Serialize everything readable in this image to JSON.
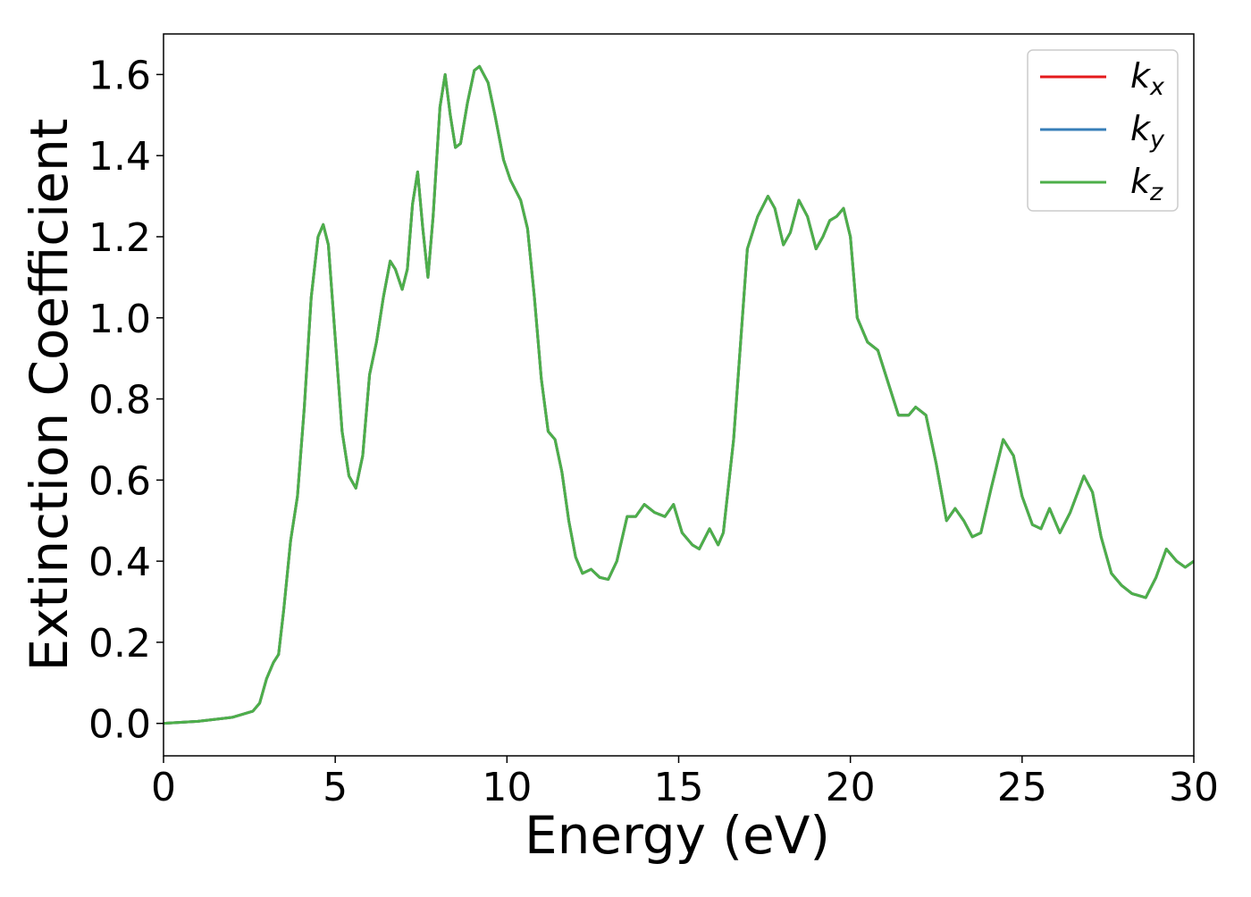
{
  "chart_data": {
    "type": "line",
    "xlabel": "Energy (eV)",
    "ylabel": "Extinction Coefficient",
    "x": [
      0,
      1,
      2,
      2.6,
      2.8,
      3.0,
      3.2,
      3.35,
      3.5,
      3.7,
      3.9,
      4.1,
      4.3,
      4.5,
      4.65,
      4.8,
      5.0,
      5.2,
      5.4,
      5.6,
      5.8,
      6.0,
      6.2,
      6.4,
      6.6,
      6.75,
      6.95,
      7.1,
      7.25,
      7.4,
      7.55,
      7.7,
      7.85,
      8.05,
      8.2,
      8.35,
      8.5,
      8.65,
      8.85,
      9.05,
      9.2,
      9.45,
      9.65,
      9.9,
      10.1,
      10.4,
      10.6,
      10.8,
      11.0,
      11.2,
      11.4,
      11.6,
      11.8,
      12.0,
      12.2,
      12.45,
      12.7,
      12.95,
      13.2,
      13.5,
      13.75,
      14.0,
      14.3,
      14.6,
      14.85,
      15.1,
      15.4,
      15.6,
      15.9,
      16.15,
      16.3,
      16.6,
      17.0,
      17.3,
      17.6,
      17.8,
      18.05,
      18.25,
      18.5,
      18.75,
      19.0,
      19.2,
      19.4,
      19.6,
      19.8,
      20.0,
      20.2,
      20.5,
      20.8,
      21.1,
      21.4,
      21.7,
      21.9,
      22.2,
      22.5,
      22.8,
      23.05,
      23.3,
      23.55,
      23.8,
      24.1,
      24.45,
      24.75,
      25.0,
      25.3,
      25.55,
      25.8,
      26.1,
      26.4,
      26.8,
      27.05,
      27.3,
      27.6,
      27.9,
      28.2,
      28.6,
      28.9,
      29.2,
      29.5,
      29.75,
      30
    ],
    "series": [
      {
        "name": "kx",
        "color": "#e41a1c",
        "values": [
          0,
          0.005,
          0.015,
          0.03,
          0.05,
          0.11,
          0.15,
          0.17,
          0.28,
          0.45,
          0.56,
          0.78,
          1.05,
          1.2,
          1.23,
          1.18,
          0.95,
          0.72,
          0.61,
          0.58,
          0.66,
          0.86,
          0.94,
          1.05,
          1.14,
          1.12,
          1.07,
          1.12,
          1.28,
          1.36,
          1.22,
          1.1,
          1.25,
          1.52,
          1.6,
          1.5,
          1.42,
          1.43,
          1.53,
          1.61,
          1.62,
          1.58,
          1.5,
          1.39,
          1.34,
          1.29,
          1.22,
          1.05,
          0.85,
          0.72,
          0.7,
          0.62,
          0.5,
          0.41,
          0.37,
          0.38,
          0.36,
          0.355,
          0.4,
          0.51,
          0.51,
          0.54,
          0.52,
          0.51,
          0.54,
          0.47,
          0.44,
          0.43,
          0.48,
          0.44,
          0.47,
          0.7,
          1.17,
          1.25,
          1.3,
          1.27,
          1.18,
          1.21,
          1.29,
          1.25,
          1.17,
          1.2,
          1.24,
          1.25,
          1.27,
          1.2,
          1.0,
          0.94,
          0.92,
          0.84,
          0.76,
          0.76,
          0.78,
          0.76,
          0.64,
          0.5,
          0.53,
          0.5,
          0.46,
          0.47,
          0.58,
          0.7,
          0.66,
          0.56,
          0.49,
          0.48,
          0.53,
          0.47,
          0.52,
          0.61,
          0.57,
          0.46,
          0.37,
          0.34,
          0.32,
          0.31,
          0.36,
          0.43,
          0.4,
          0.385,
          0.4
        ]
      },
      {
        "name": "ky",
        "color": "#377eb8",
        "values": [
          0,
          0.005,
          0.015,
          0.03,
          0.05,
          0.11,
          0.15,
          0.17,
          0.28,
          0.45,
          0.56,
          0.78,
          1.05,
          1.2,
          1.23,
          1.18,
          0.95,
          0.72,
          0.61,
          0.58,
          0.66,
          0.86,
          0.94,
          1.05,
          1.14,
          1.12,
          1.07,
          1.12,
          1.28,
          1.36,
          1.22,
          1.1,
          1.25,
          1.52,
          1.6,
          1.5,
          1.42,
          1.43,
          1.53,
          1.61,
          1.62,
          1.58,
          1.5,
          1.39,
          1.34,
          1.29,
          1.22,
          1.05,
          0.85,
          0.72,
          0.7,
          0.62,
          0.5,
          0.41,
          0.37,
          0.38,
          0.36,
          0.355,
          0.4,
          0.51,
          0.51,
          0.54,
          0.52,
          0.51,
          0.54,
          0.47,
          0.44,
          0.43,
          0.48,
          0.44,
          0.47,
          0.7,
          1.17,
          1.25,
          1.3,
          1.27,
          1.18,
          1.21,
          1.29,
          1.25,
          1.17,
          1.2,
          1.24,
          1.25,
          1.27,
          1.2,
          1.0,
          0.94,
          0.92,
          0.84,
          0.76,
          0.76,
          0.78,
          0.76,
          0.64,
          0.5,
          0.53,
          0.5,
          0.46,
          0.47,
          0.58,
          0.7,
          0.66,
          0.56,
          0.49,
          0.48,
          0.53,
          0.47,
          0.52,
          0.61,
          0.57,
          0.46,
          0.37,
          0.34,
          0.32,
          0.31,
          0.36,
          0.43,
          0.4,
          0.385,
          0.4
        ]
      },
      {
        "name": "kz",
        "color": "#4daf4a",
        "values": [
          0,
          0.005,
          0.015,
          0.03,
          0.05,
          0.11,
          0.15,
          0.17,
          0.28,
          0.45,
          0.56,
          0.78,
          1.05,
          1.2,
          1.23,
          1.18,
          0.95,
          0.72,
          0.61,
          0.58,
          0.66,
          0.86,
          0.94,
          1.05,
          1.14,
          1.12,
          1.07,
          1.12,
          1.28,
          1.36,
          1.22,
          1.1,
          1.25,
          1.52,
          1.6,
          1.5,
          1.42,
          1.43,
          1.53,
          1.61,
          1.62,
          1.58,
          1.5,
          1.39,
          1.34,
          1.29,
          1.22,
          1.05,
          0.85,
          0.72,
          0.7,
          0.62,
          0.5,
          0.41,
          0.37,
          0.38,
          0.36,
          0.355,
          0.4,
          0.51,
          0.51,
          0.54,
          0.52,
          0.51,
          0.54,
          0.47,
          0.44,
          0.43,
          0.48,
          0.44,
          0.47,
          0.7,
          1.17,
          1.25,
          1.3,
          1.27,
          1.18,
          1.21,
          1.29,
          1.25,
          1.17,
          1.2,
          1.24,
          1.25,
          1.27,
          1.2,
          1.0,
          0.94,
          0.92,
          0.84,
          0.76,
          0.76,
          0.78,
          0.76,
          0.64,
          0.5,
          0.53,
          0.5,
          0.46,
          0.47,
          0.58,
          0.7,
          0.66,
          0.56,
          0.49,
          0.48,
          0.53,
          0.47,
          0.52,
          0.61,
          0.57,
          0.46,
          0.37,
          0.34,
          0.32,
          0.31,
          0.36,
          0.43,
          0.4,
          0.385,
          0.4
        ]
      }
    ],
    "xlim": [
      0,
      30
    ],
    "xticks": [
      0,
      5,
      10,
      15,
      20,
      25,
      30
    ],
    "ylim": [
      -0.08,
      1.7
    ],
    "yticks": [
      {
        "value": 0,
        "label": "0.0"
      },
      0.2,
      0.4,
      0.6,
      0.8,
      {
        "value": 1,
        "label": "1.0"
      },
      1.2,
      1.4,
      1.6
    ],
    "legend": "upper right"
  }
}
